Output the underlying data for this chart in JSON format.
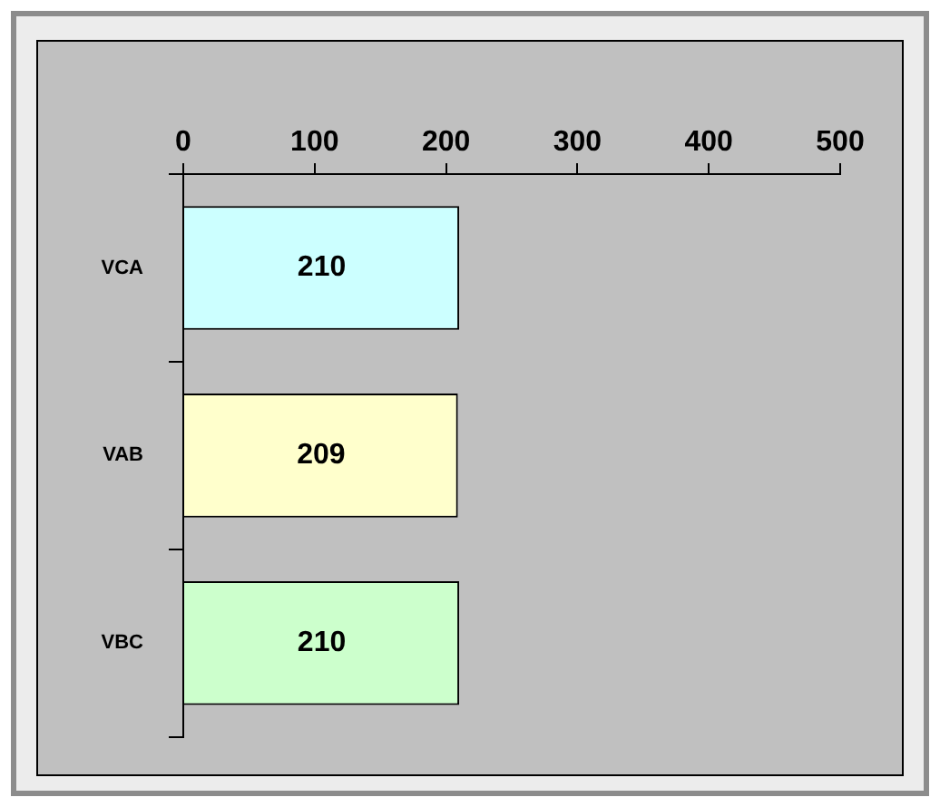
{
  "chart_data": {
    "type": "bar",
    "orientation": "horizontal",
    "categories": [
      "VCA",
      "VAB",
      "VBC"
    ],
    "values": [
      210,
      209,
      210
    ],
    "colors": [
      "#ccffff",
      "#ffffcc",
      "#ccffcc"
    ],
    "xlim": [
      0,
      500
    ],
    "xticks": [
      0,
      100,
      200,
      300,
      400,
      500
    ],
    "grid": false,
    "legend": false,
    "data_labels": true
  }
}
